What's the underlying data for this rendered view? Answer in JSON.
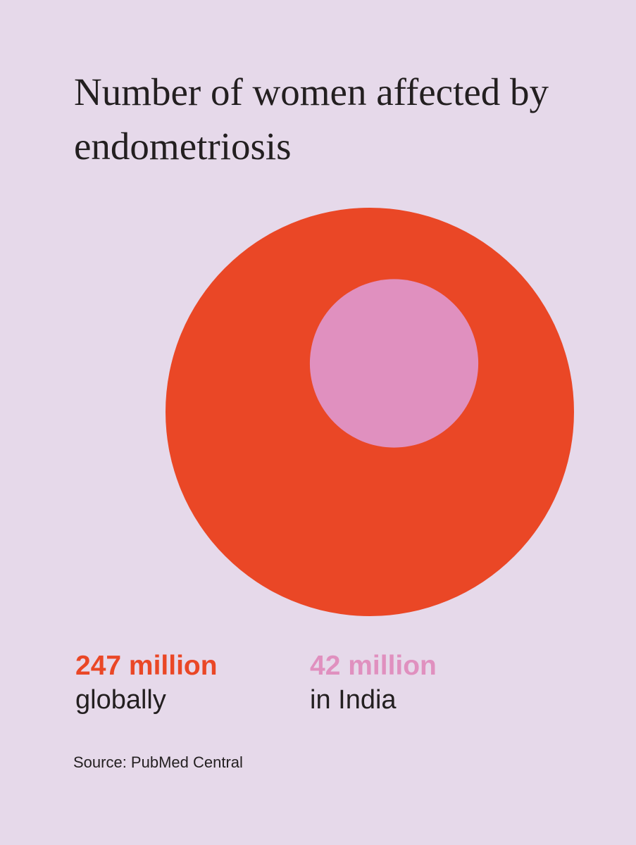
{
  "chart_data": {
    "type": "nested-circles",
    "title": "Number of women affected by endometriosis",
    "series": [
      {
        "name": "globally",
        "color": "#ea4726",
        "values": [
          247
        ],
        "value_labels": [
          "247 million"
        ]
      },
      {
        "name": "in India",
        "color": "#e090bf",
        "values": [
          42
        ],
        "value_labels": [
          "42 million"
        ]
      }
    ],
    "source": "Source: PubMed Central"
  }
}
